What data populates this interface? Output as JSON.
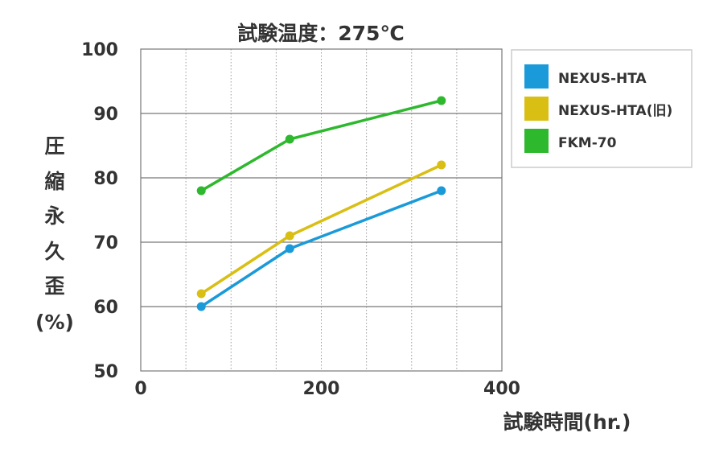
{
  "chart_data": {
    "type": "line",
    "title": "試験温度：275℃",
    "xlabel": "試験時間(hr.)",
    "ylabel_chars": [
      "圧",
      "縮",
      "永",
      "久",
      "歪",
      "(%)"
    ],
    "xlim": [
      0,
      400
    ],
    "ylim": [
      50,
      100
    ],
    "x_ticks": [
      0,
      200,
      400
    ],
    "x_tick_labels": [
      "0",
      "200",
      "400"
    ],
    "y_ticks": [
      50,
      60,
      70,
      80,
      90,
      100
    ],
    "y_tick_labels": [
      "50",
      "60",
      "70",
      "80",
      "90",
      "100"
    ],
    "grid": true,
    "legend_position": "top-right",
    "series": [
      {
        "name": "NEXUS-HTA",
        "color": "#1a9ad9",
        "x": [
          67,
          165,
          333
        ],
        "y": [
          60,
          69,
          78
        ]
      },
      {
        "name": "NEXUS-HTA(旧)",
        "color": "#d9bf14",
        "x": [
          67,
          165,
          333
        ],
        "y": [
          62,
          71,
          82
        ]
      },
      {
        "name": "FKM-70",
        "color": "#2eb82e",
        "x": [
          67,
          165,
          333
        ],
        "y": [
          78,
          86,
          92
        ]
      }
    ]
  }
}
